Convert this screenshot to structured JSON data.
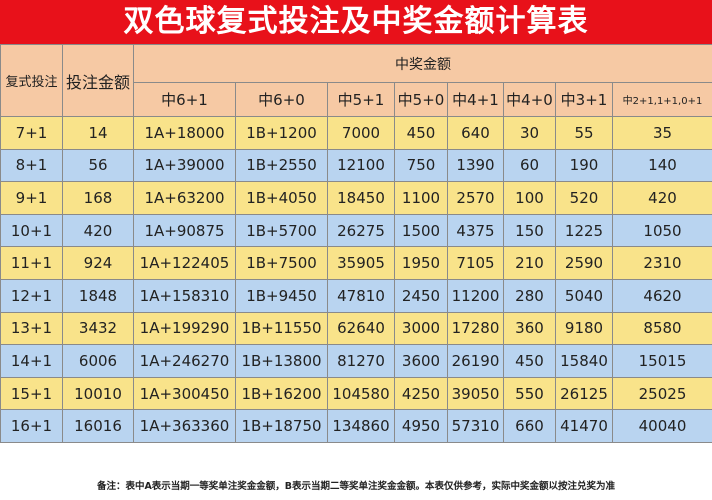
{
  "title": "双色球复式投注及中奖金额计算表",
  "headers": {
    "bet": "复式投注",
    "cost": "投注金额",
    "prize_group": "中奖金额",
    "prizes": [
      "中6+1",
      "中6+0",
      "中5+1",
      "中5+0",
      "中4+1",
      "中4+0",
      "中3+1",
      "中2+1,1+1,0+1"
    ]
  },
  "rows": [
    [
      "7+1",
      "14",
      "1A+18000",
      "1B+1200",
      "7000",
      "450",
      "640",
      "30",
      "55",
      "35"
    ],
    [
      "8+1",
      "56",
      "1A+39000",
      "1B+2550",
      "12100",
      "750",
      "1390",
      "60",
      "190",
      "140"
    ],
    [
      "9+1",
      "168",
      "1A+63200",
      "1B+4050",
      "18450",
      "1100",
      "2570",
      "100",
      "520",
      "420"
    ],
    [
      "10+1",
      "420",
      "1A+90875",
      "1B+5700",
      "26275",
      "1500",
      "4375",
      "150",
      "1225",
      "1050"
    ],
    [
      "11+1",
      "924",
      "1A+122405",
      "1B+7500",
      "35905",
      "1950",
      "7105",
      "210",
      "2590",
      "2310"
    ],
    [
      "12+1",
      "1848",
      "1A+158310",
      "1B+9450",
      "47810",
      "2450",
      "11200",
      "280",
      "5040",
      "4620"
    ],
    [
      "13+1",
      "3432",
      "1A+199290",
      "1B+11550",
      "62640",
      "3000",
      "17280",
      "360",
      "9180",
      "8580"
    ],
    [
      "14+1",
      "6006",
      "1A+246270",
      "1B+13800",
      "81270",
      "3600",
      "26190",
      "450",
      "15840",
      "15015"
    ],
    [
      "15+1",
      "10010",
      "1A+300450",
      "1B+16200",
      "104580",
      "4250",
      "39050",
      "550",
      "26125",
      "25025"
    ],
    [
      "16+1",
      "16016",
      "1A+363360",
      "1B+18750",
      "134860",
      "4950",
      "57310",
      "660",
      "41470",
      "40040"
    ]
  ],
  "note": "备注：表中A表示当期一等奖单注奖金金额，B表示当期二等奖单注奖金金额。本表仅供参考，实际中奖金额以按注兑奖为准",
  "colors": {
    "title_bg": "#e8111a",
    "header_bg": "#f6c9a4",
    "row_yellow": "#f9e38a",
    "row_blue": "#b9d4f0"
  }
}
